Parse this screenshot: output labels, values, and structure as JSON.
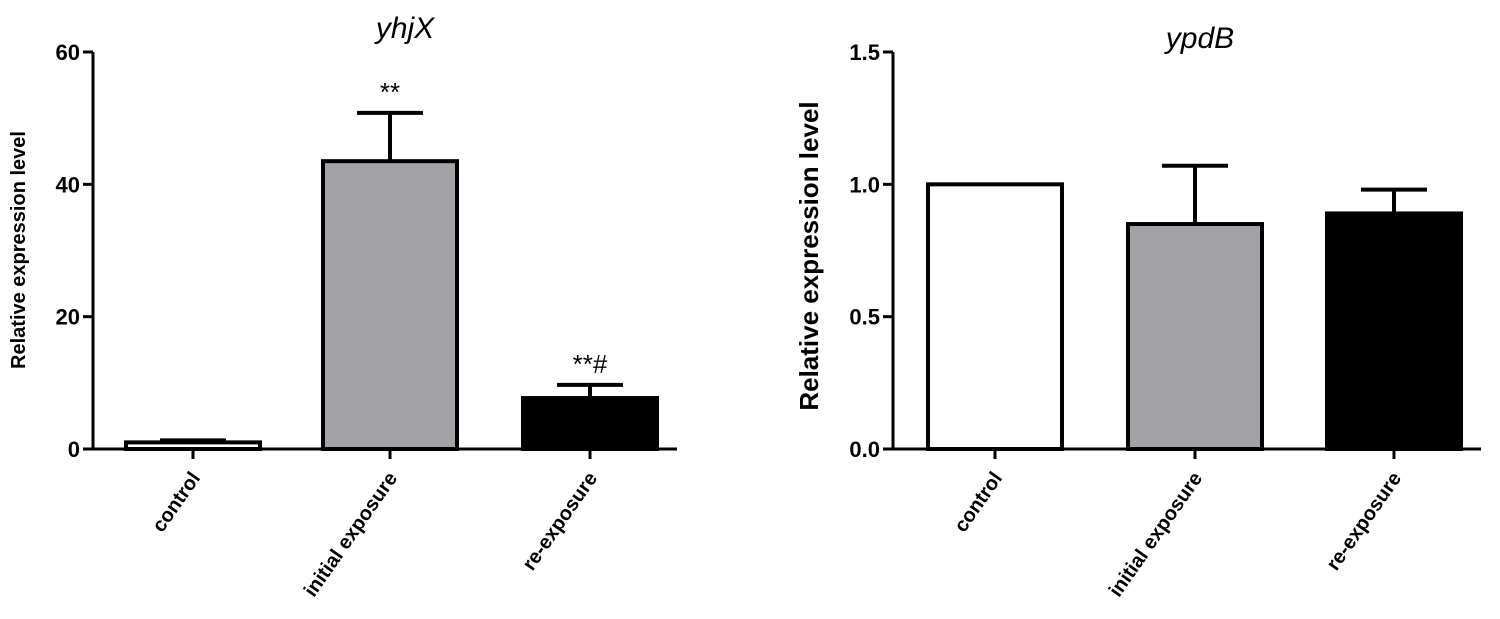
{
  "chart_data": [
    {
      "type": "bar",
      "title": "yhjX",
      "xlabel": "",
      "ylabel": "Relative expression level",
      "ylim": [
        0,
        60
      ],
      "yticks": [
        0,
        20,
        40,
        60
      ],
      "categories": [
        "control",
        "initial exposure",
        "re-exposure"
      ],
      "values": [
        1.0,
        43.5,
        7.7
      ],
      "errors": [
        0.3,
        7.3,
        2.0
      ],
      "bar_colors": [
        "#ffffff",
        "#a3a2a7",
        "#000000"
      ],
      "annotations": [
        "",
        "**",
        "**#"
      ],
      "grid": false,
      "legend": "none"
    },
    {
      "type": "bar",
      "title": "ypdB",
      "xlabel": "",
      "ylabel": "Relative expression level",
      "ylim": [
        0,
        1.5
      ],
      "yticks": [
        "0.0",
        "0.5",
        "1.0",
        "1.5"
      ],
      "categories": [
        "control",
        "initial exposure",
        "re-exposure"
      ],
      "values": [
        1.0,
        0.85,
        0.89
      ],
      "errors": [
        0.0,
        0.22,
        0.09
      ],
      "bar_colors": [
        "#ffffff",
        "#a3a2a7",
        "#000000"
      ],
      "annotations": [
        "",
        "",
        ""
      ],
      "grid": false,
      "legend": "none"
    }
  ]
}
